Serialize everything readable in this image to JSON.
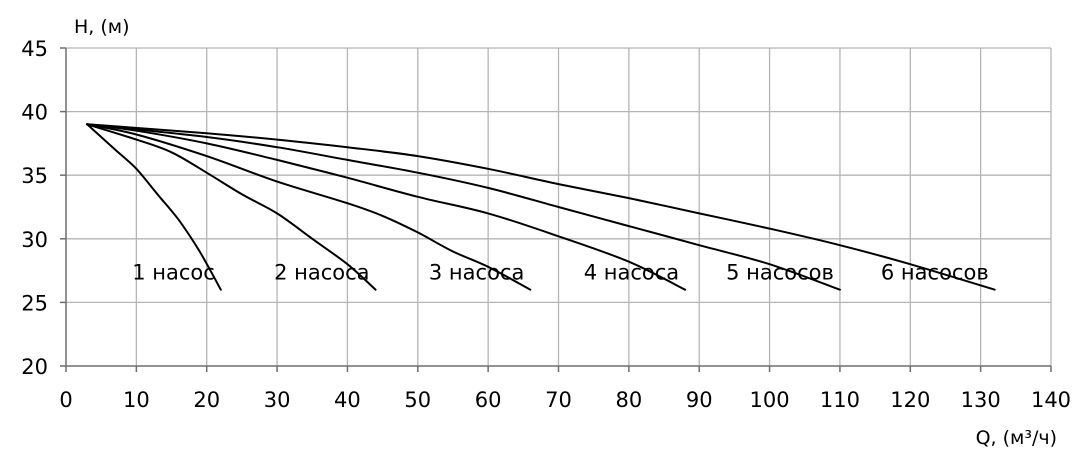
{
  "chart_data": {
    "type": "line",
    "xlabel": "Q, (м³/ч)",
    "ylabel": "H, (м)",
    "xlim": [
      0,
      140
    ],
    "ylim": [
      20,
      45
    ],
    "x_ticks": [
      0,
      10,
      20,
      30,
      40,
      50,
      60,
      70,
      80,
      90,
      100,
      110,
      120,
      130,
      140
    ],
    "y_ticks": [
      20,
      25,
      30,
      35,
      40,
      45
    ],
    "grid": true,
    "legend": "none",
    "line_color": "#000000",
    "grid_color": "#b5b5b5",
    "series": [
      {
        "name": "1 насос",
        "points": [
          [
            3,
            39
          ],
          [
            5,
            38
          ],
          [
            7,
            37
          ],
          [
            10,
            35.5
          ],
          [
            13,
            33.5
          ],
          [
            16,
            31.5
          ],
          [
            19,
            29
          ],
          [
            22,
            26
          ]
        ]
      },
      {
        "name": "2 насоса",
        "points": [
          [
            3,
            39
          ],
          [
            10,
            37.8
          ],
          [
            15,
            36.8
          ],
          [
            20,
            35.2
          ],
          [
            25,
            33.5
          ],
          [
            30,
            32
          ],
          [
            35,
            30
          ],
          [
            40,
            28
          ],
          [
            44,
            26
          ]
        ]
      },
      {
        "name": "3 насоса",
        "points": [
          [
            3,
            39
          ],
          [
            10,
            38.2
          ],
          [
            20,
            36.5
          ],
          [
            30,
            34.5
          ],
          [
            40,
            32.8
          ],
          [
            45,
            31.8
          ],
          [
            50,
            30.5
          ],
          [
            55,
            29
          ],
          [
            60,
            27.8
          ],
          [
            66,
            26
          ]
        ]
      },
      {
        "name": "4 насоса",
        "points": [
          [
            3,
            39
          ],
          [
            10,
            38.5
          ],
          [
            20,
            37.5
          ],
          [
            30,
            36.2
          ],
          [
            40,
            34.8
          ],
          [
            50,
            33.3
          ],
          [
            60,
            32
          ],
          [
            70,
            30.2
          ],
          [
            80,
            28.2
          ],
          [
            88,
            26
          ]
        ]
      },
      {
        "name": "5 насосов",
        "points": [
          [
            3,
            39
          ],
          [
            20,
            38
          ],
          [
            30,
            37.2
          ],
          [
            40,
            36.2
          ],
          [
            50,
            35.2
          ],
          [
            60,
            34
          ],
          [
            70,
            32.5
          ],
          [
            80,
            31
          ],
          [
            90,
            29.5
          ],
          [
            100,
            28
          ],
          [
            110,
            26
          ]
        ]
      },
      {
        "name": "6 насосов",
        "points": [
          [
            3,
            39
          ],
          [
            20,
            38.3
          ],
          [
            30,
            37.8
          ],
          [
            40,
            37.2
          ],
          [
            50,
            36.5
          ],
          [
            60,
            35.5
          ],
          [
            70,
            34.3
          ],
          [
            80,
            33.2
          ],
          [
            90,
            32
          ],
          [
            100,
            30.8
          ],
          [
            110,
            29.5
          ],
          [
            120,
            28
          ],
          [
            132,
            26
          ]
        ]
      }
    ]
  }
}
